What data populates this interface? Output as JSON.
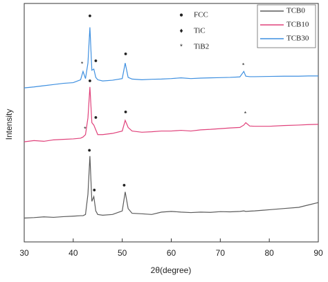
{
  "chart_data": {
    "type": "line",
    "xlabel": "2θ(degree)",
    "ylabel": "Intensity",
    "xlim": [
      30,
      90
    ],
    "xticks": [
      30,
      40,
      50,
      60,
      70,
      80,
      90
    ],
    "ylim": [
      0,
      100
    ],
    "x": [
      30,
      32,
      34,
      36,
      38,
      40,
      41.5,
      42,
      42.5,
      43,
      43.4,
      43.8,
      44.2,
      44.6,
      45,
      46,
      48,
      50,
      50.6,
      51.2,
      52,
      54,
      56,
      58,
      60,
      62,
      64,
      66,
      68,
      70,
      72,
      74,
      74.8,
      75.2,
      76,
      77,
      80,
      83,
      86,
      88,
      90
    ],
    "series": [
      {
        "name": "TCB0",
        "color": "#5a5a5a",
        "values": [
          10,
          10.2,
          10.5,
          10.3,
          10.6,
          10.8,
          11,
          11,
          11.5,
          20,
          36,
          17,
          19,
          13,
          11.5,
          11.2,
          11.5,
          13,
          21,
          14,
          12,
          11.8,
          11.5,
          12.5,
          12.8,
          12.5,
          12.3,
          12.5,
          12.4,
          12.7,
          12.6,
          12.8,
          13,
          12.8,
          12.9,
          13,
          13.5,
          14,
          14.5,
          15.5,
          16.5
        ]
      },
      {
        "name": "TCB10",
        "color": "#e0407a",
        "values": [
          42,
          42.5,
          42.2,
          42.8,
          43,
          43.2,
          43.5,
          44,
          45,
          52,
          65,
          50,
          49,
          47,
          45,
          45,
          45.5,
          46.5,
          51,
          48,
          46.5,
          46,
          46.2,
          46.5,
          46.5,
          46.8,
          46.5,
          47,
          47.2,
          47.5,
          47.8,
          48,
          49,
          50,
          48.6,
          48.5,
          48.5,
          48.8,
          49,
          49.2,
          49.3
        ]
      },
      {
        "name": "TCB30",
        "color": "#3d8fe0",
        "values": [
          64.6,
          65,
          65.5,
          66,
          66.5,
          66.8,
          68,
          71.5,
          68.5,
          75,
          90,
          72,
          72.5,
          69,
          68,
          67.5,
          67.8,
          68.5,
          75,
          69,
          68.3,
          68,
          68.2,
          68.3,
          68.5,
          68.8,
          68.5,
          68.7,
          68.8,
          68.9,
          69,
          69.2,
          71.5,
          69.5,
          69.3,
          69.3,
          69.4,
          69.5,
          69.5,
          69.6,
          69.6
        ]
      }
    ],
    "phase_legend": [
      {
        "symbol": "●",
        "label": "FCC"
      },
      {
        "symbol": "♦",
        "label": "TiC"
      },
      {
        "symbol": "*",
        "label": "TiB2"
      }
    ],
    "annotations": [
      {
        "text": "●",
        "x": 43.3,
        "y": 38.3
      },
      {
        "text": "●",
        "x": 44.3,
        "y": 21.7
      },
      {
        "text": "●",
        "x": 50.4,
        "y": 23.8
      },
      {
        "text": "*",
        "x": 42.4,
        "y": 47.2
      },
      {
        "text": "●",
        "x": 43.4,
        "y": 67.5
      },
      {
        "text": "●",
        "x": 44.6,
        "y": 52.2
      },
      {
        "text": "●",
        "x": 50.7,
        "y": 54.5
      },
      {
        "text": "*",
        "x": 75.1,
        "y": 53.6
      },
      {
        "text": "*",
        "x": 41.8,
        "y": 74.5
      },
      {
        "text": "●",
        "x": 43.4,
        "y": 94.8
      },
      {
        "text": "●",
        "x": 44.6,
        "y": 75.9
      },
      {
        "text": "●",
        "x": 50.7,
        "y": 78.8
      },
      {
        "text": "*",
        "x": 74.7,
        "y": 73.9
      }
    ]
  }
}
